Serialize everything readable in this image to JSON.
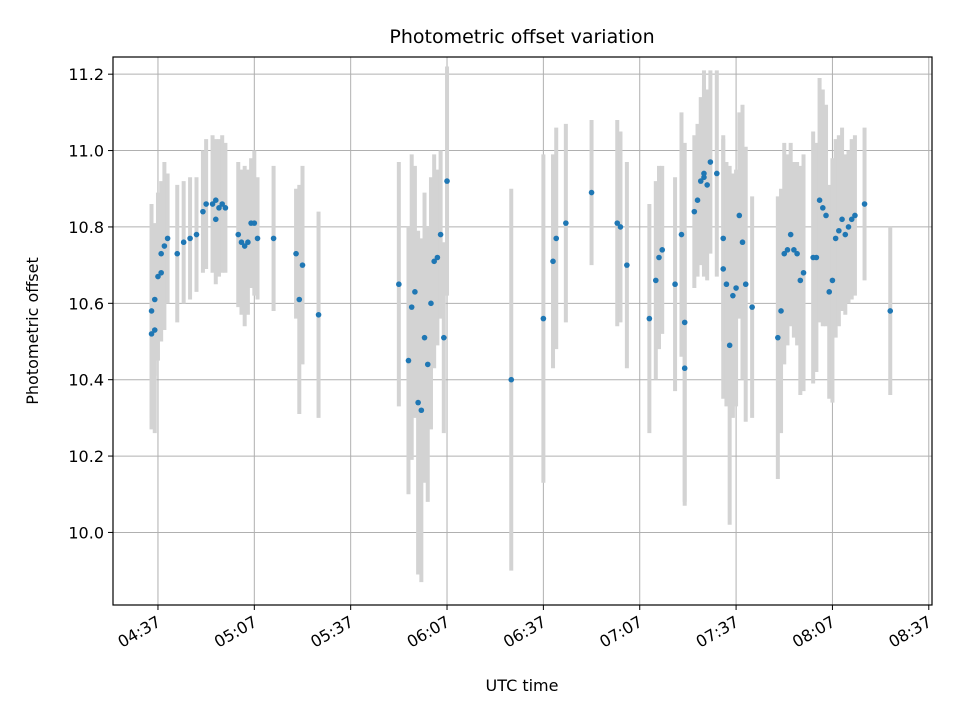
{
  "chart_data": {
    "type": "scatter",
    "title": "Photometric offset variation",
    "xlabel": "UTC time",
    "ylabel": "Photometric offset",
    "x_unit": "UTC time (HH:MM)",
    "xlim": [
      "04:23",
      "08:38"
    ],
    "ylim": [
      9.81,
      11.245
    ],
    "x_ticks": [
      "04:37",
      "05:07",
      "05:37",
      "06:07",
      "06:37",
      "07:07",
      "07:37",
      "08:07",
      "08:37"
    ],
    "y_ticks": [
      10.0,
      10.2,
      10.4,
      10.6,
      10.8,
      11.0,
      11.2
    ],
    "y_tick_labels": [
      "10.0",
      "10.2",
      "10.4",
      "10.6",
      "10.8",
      "11.0",
      "11.2"
    ],
    "grid": true,
    "marker_color": "#1f77b4",
    "errorbar_color": "#d3d3d3",
    "series": [
      {
        "x": [
          "04:35",
          "04:35",
          "04:36",
          "04:36",
          "04:37",
          "04:38",
          "04:38",
          "04:39",
          "04:40",
          "04:43",
          "04:45",
          "04:47",
          "04:49",
          "04:51",
          "04:52",
          "04:54",
          "04:55",
          "04:55",
          "04:56",
          "04:57",
          "04:58",
          "05:02",
          "05:03",
          "05:04",
          "05:05",
          "05:06",
          "05:07",
          "05:08",
          "05:13",
          "05:20",
          "05:21",
          "05:22",
          "05:27",
          "05:52",
          "05:55",
          "05:56",
          "05:57",
          "05:58",
          "05:59",
          "06:00",
          "06:01",
          "06:02",
          "06:03",
          "06:04",
          "06:05",
          "06:06",
          "06:07",
          "06:27",
          "06:37",
          "06:40",
          "06:41",
          "06:44",
          "06:52",
          "07:00",
          "07:01",
          "07:03",
          "07:10",
          "07:12",
          "07:13",
          "07:14",
          "07:18",
          "07:20",
          "07:21",
          "07:21",
          "07:24",
          "07:25",
          "07:26",
          "07:27",
          "07:27",
          "07:28",
          "07:29",
          "07:31",
          "07:33",
          "07:33",
          "07:34",
          "07:35",
          "07:36",
          "07:37",
          "07:38",
          "07:39",
          "07:40",
          "07:42",
          "07:50",
          "07:51",
          "07:52",
          "07:53",
          "07:54",
          "07:55",
          "07:56",
          "07:57",
          "07:58",
          "08:01",
          "08:02",
          "08:03",
          "08:04",
          "08:05",
          "08:06",
          "08:07",
          "08:08",
          "08:09",
          "08:10",
          "08:11",
          "08:12",
          "08:13",
          "08:14",
          "08:17",
          "08:25"
        ],
        "y": [
          10.52,
          10.58,
          10.53,
          10.61,
          10.67,
          10.68,
          10.73,
          10.75,
          10.77,
          10.73,
          10.76,
          10.77,
          10.78,
          10.84,
          10.86,
          10.86,
          10.82,
          10.87,
          10.85,
          10.86,
          10.85,
          10.78,
          10.76,
          10.75,
          10.76,
          10.81,
          10.81,
          10.77,
          10.77,
          10.73,
          10.61,
          10.7,
          10.57,
          10.65,
          10.45,
          10.59,
          10.63,
          10.34,
          10.32,
          10.51,
          10.44,
          10.6,
          10.71,
          10.72,
          10.78,
          10.51,
          10.92,
          10.4,
          10.56,
          10.71,
          10.77,
          10.81,
          10.89,
          10.81,
          10.8,
          10.7,
          10.56,
          10.66,
          10.72,
          10.74,
          10.65,
          10.78,
          10.43,
          10.55,
          10.84,
          10.87,
          10.92,
          10.93,
          10.94,
          10.91,
          10.97,
          10.94,
          10.77,
          10.69,
          10.65,
          10.49,
          10.62,
          10.64,
          10.83,
          10.76,
          10.65,
          10.59,
          10.51,
          10.58,
          10.73,
          10.74,
          10.78,
          10.74,
          10.73,
          10.66,
          10.68,
          10.72,
          10.72,
          10.87,
          10.85,
          10.83,
          10.63,
          10.66,
          10.77,
          10.79,
          10.82,
          10.78,
          10.8,
          10.82,
          10.83,
          10.86,
          10.58
        ],
        "y_err": [
          0.25,
          0.28,
          0.27,
          0.2,
          0.22,
          0.18,
          0.19,
          0.22,
          0.17,
          0.18,
          0.16,
          0.16,
          0.15,
          0.16,
          0.17,
          0.18,
          0.17,
          0.16,
          0.18,
          0.18,
          0.17,
          0.19,
          0.19,
          0.21,
          0.19,
          0.17,
          0.19,
          0.16,
          0.19,
          0.17,
          0.3,
          0.26,
          0.27,
          0.32,
          0.35,
          0.4,
          0.33,
          0.45,
          0.45,
          0.38,
          0.36,
          0.33,
          0.28,
          0.23,
          0.22,
          0.25,
          0.3,
          0.5,
          0.43,
          0.28,
          0.29,
          0.26,
          0.19,
          0.27,
          0.25,
          0.27,
          0.3,
          0.26,
          0.24,
          0.22,
          0.28,
          0.32,
          0.36,
          0.47,
          0.2,
          0.2,
          0.22,
          0.24,
          0.27,
          0.25,
          0.24,
          0.27,
          0.27,
          0.34,
          0.32,
          0.47,
          0.32,
          0.31,
          0.27,
          0.36,
          0.36,
          0.29,
          0.37,
          0.32,
          0.29,
          0.25,
          0.24,
          0.23,
          0.24,
          0.3,
          0.31,
          0.33,
          0.3,
          0.32,
          0.31,
          0.29,
          0.28,
          0.32,
          0.26,
          0.25,
          0.24,
          0.21,
          0.2,
          0.21,
          0.21,
          0.2,
          0.22
        ]
      }
    ]
  }
}
